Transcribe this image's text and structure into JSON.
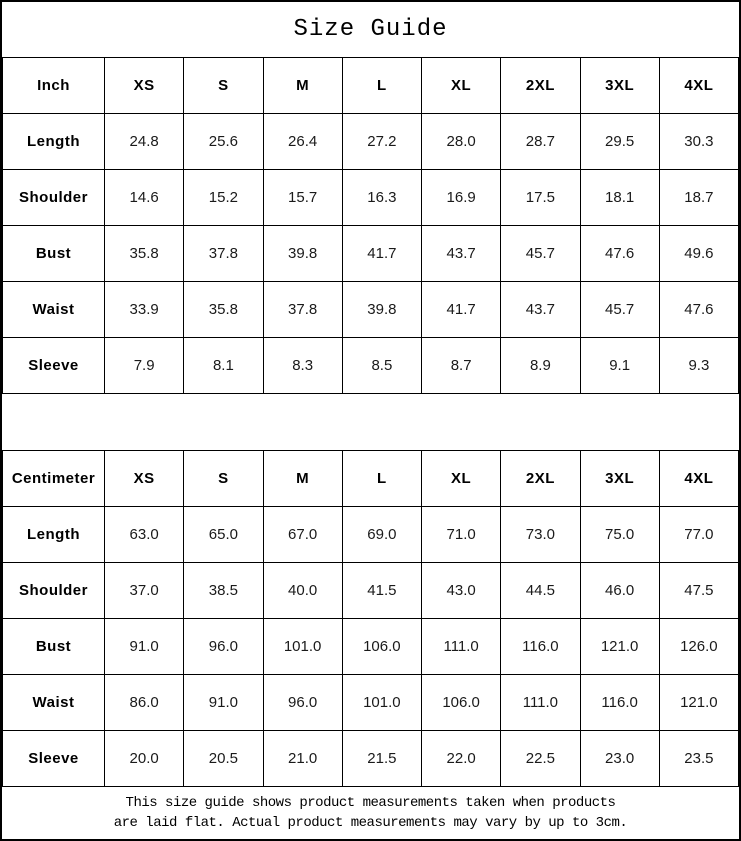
{
  "title": "Size Guide",
  "tables": [
    {
      "unit_label": "Inch",
      "columns": [
        "XS",
        "S",
        "M",
        "L",
        "XL",
        "2XL",
        "3XL",
        "4XL"
      ],
      "rows": [
        {
          "label": "Length",
          "values": [
            "24.8",
            "25.6",
            "26.4",
            "27.2",
            "28.0",
            "28.7",
            "29.5",
            "30.3"
          ]
        },
        {
          "label": "Shoulder",
          "values": [
            "14.6",
            "15.2",
            "15.7",
            "16.3",
            "16.9",
            "17.5",
            "18.1",
            "18.7"
          ]
        },
        {
          "label": "Bust",
          "values": [
            "35.8",
            "37.8",
            "39.8",
            "41.7",
            "43.7",
            "45.7",
            "47.6",
            "49.6"
          ]
        },
        {
          "label": "Waist",
          "values": [
            "33.9",
            "35.8",
            "37.8",
            "39.8",
            "41.7",
            "43.7",
            "45.7",
            "47.6"
          ]
        },
        {
          "label": "Sleeve",
          "values": [
            "7.9",
            "8.1",
            "8.3",
            "8.5",
            "8.7",
            "8.9",
            "9.1",
            "9.3"
          ]
        }
      ]
    },
    {
      "unit_label": "Centimeter",
      "columns": [
        "XS",
        "S",
        "M",
        "L",
        "XL",
        "2XL",
        "3XL",
        "4XL"
      ],
      "rows": [
        {
          "label": "Length",
          "values": [
            "63.0",
            "65.0",
            "67.0",
            "69.0",
            "71.0",
            "73.0",
            "75.0",
            "77.0"
          ]
        },
        {
          "label": "Shoulder",
          "values": [
            "37.0",
            "38.5",
            "40.0",
            "41.5",
            "43.0",
            "44.5",
            "46.0",
            "47.5"
          ]
        },
        {
          "label": "Bust",
          "values": [
            "91.0",
            "96.0",
            "101.0",
            "106.0",
            "111.0",
            "116.0",
            "121.0",
            "126.0"
          ]
        },
        {
          "label": "Waist",
          "values": [
            "86.0",
            "91.0",
            "96.0",
            "101.0",
            "106.0",
            "111.0",
            "116.0",
            "121.0"
          ]
        },
        {
          "label": "Sleeve",
          "values": [
            "20.0",
            "20.5",
            "21.0",
            "21.5",
            "22.0",
            "22.5",
            "23.0",
            "23.5"
          ]
        }
      ]
    }
  ],
  "footer_note_lines": [
    "This size guide shows product measurements taken when products",
    "are laid flat. Actual product measurements may vary by up to 3cm."
  ],
  "colors": {
    "background": "#ffffff",
    "border": "#000000",
    "text": "#000000"
  }
}
